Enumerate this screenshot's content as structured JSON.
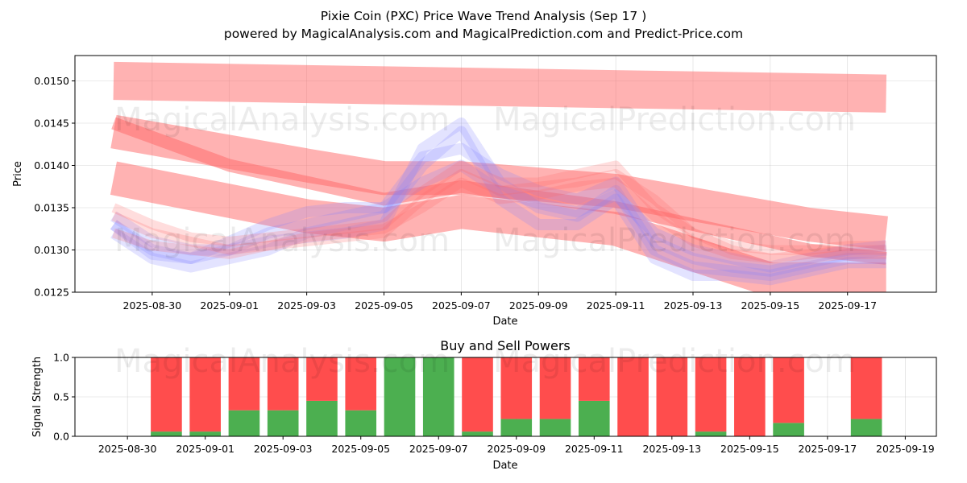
{
  "title_line1": "Pixie Coin (PXC) Price Wave Trend Analysis (Sep 17 )",
  "title_line2": "powered by MagicalAnalysis.com and MagicalPrediction.com and Predict-Price.com",
  "watermarks": [
    "MagicalAnalysis.com",
    "MagicalPrediction.com"
  ],
  "colors": {
    "buy": "#4caf50",
    "sell": "#ff4d4d",
    "history_band": "#8080ff",
    "forecast_band": "#ff6666"
  },
  "chart_data": [
    {
      "type": "line",
      "title": "",
      "xlabel": "Date",
      "ylabel": "Price",
      "ylim": [
        0.0125,
        0.0153
      ],
      "yticks": [
        0.0125,
        0.013,
        0.0135,
        0.014,
        0.0145,
        0.015
      ],
      "ytick_labels": [
        "0.0125",
        "0.0130",
        "0.0135",
        "0.0140",
        "0.0145",
        "0.0150"
      ],
      "xtick_labels": [
        "2025-08-30",
        "2025-09-01",
        "2025-09-03",
        "2025-09-05",
        "2025-09-07",
        "2025-09-09",
        "2025-09-11",
        "2025-09-13",
        "2025-09-15",
        "2025-09-17"
      ],
      "xtick_days": [
        -1,
        1,
        3,
        5,
        7,
        9,
        11,
        13,
        15,
        17
      ],
      "xlim_days": [
        -3.0,
        19.3
      ],
      "x_days": [
        -2,
        -1,
        0,
        1,
        2,
        3,
        4,
        5,
        6,
        7,
        8,
        9,
        10,
        11,
        12,
        13,
        14,
        15,
        16,
        17,
        18
      ],
      "series": [
        {
          "name": "wave-history-1",
          "kind": "history",
          "values": [
            0.0133,
            0.013,
            0.0129,
            0.013,
            0.0131,
            0.01315,
            0.0132,
            0.0133,
            0.0142,
            0.0145,
            0.0138,
            0.0135,
            0.0134,
            0.0137,
            0.013,
            0.0128,
            0.01275,
            0.0127,
            0.0128,
            0.0129,
            0.0129
          ]
        },
        {
          "name": "wave-history-2",
          "kind": "history",
          "values": [
            0.0132,
            0.0129,
            0.0128,
            0.0129,
            0.013,
            0.0132,
            0.0133,
            0.0134,
            0.014,
            0.0144,
            0.0136,
            0.0133,
            0.0133,
            0.0136,
            0.0129,
            0.0127,
            0.0127,
            0.01265,
            0.01275,
            0.01285,
            0.01285
          ]
        },
        {
          "name": "wave-history-3",
          "kind": "history",
          "values": [
            0.0134,
            0.0131,
            0.013,
            0.013,
            0.0132,
            0.0133,
            0.0134,
            0.0135,
            0.0141,
            0.0142,
            0.0139,
            0.0137,
            0.0136,
            0.0138,
            0.0131,
            0.0129,
            0.0128,
            0.01275,
            0.01285,
            0.01295,
            0.013
          ]
        },
        {
          "name": "wave-history-4",
          "kind": "history",
          "values": [
            0.0133,
            0.01295,
            0.0129,
            0.0131,
            0.0133,
            0.01345,
            0.0135,
            0.0135,
            0.0138,
            0.014,
            0.0137,
            0.01355,
            0.01345,
            0.01365,
            0.0132,
            0.013,
            0.0129,
            0.0128,
            0.0129,
            0.013,
            0.01305
          ]
        },
        {
          "name": "wave-forecast-1",
          "kind": "forecast",
          "values": [
            0.0134,
            0.0132,
            0.0131,
            0.013,
            0.01305,
            0.0131,
            0.01315,
            0.0132,
            0.0136,
            0.0139,
            0.0137,
            0.01375,
            0.0138,
            0.0139,
            0.0136,
            0.0132,
            0.013,
            0.0129,
            0.01295,
            0.013,
            0.013
          ]
        },
        {
          "name": "wave-forecast-2",
          "kind": "forecast",
          "values": [
            0.0132,
            0.01305,
            0.013,
            0.01295,
            0.01305,
            0.01315,
            0.0132,
            0.01325,
            0.0135,
            0.0138,
            0.0136,
            0.01365,
            0.01375,
            0.0138,
            0.0134,
            0.0131,
            0.01295,
            0.0129,
            0.0129,
            0.01295,
            0.01295
          ]
        },
        {
          "name": "wave-forecast-3",
          "kind": "forecast",
          "values": [
            0.0135,
            0.0133,
            0.01315,
            0.0131,
            0.01315,
            0.0132,
            0.01325,
            0.0133,
            0.0137,
            0.014,
            0.0138,
            0.0138,
            0.0139,
            0.014,
            0.0135,
            0.0132,
            0.01305,
            0.013,
            0.013,
            0.01305,
            0.01305
          ]
        }
      ],
      "trend_bands": [
        {
          "name": "trend-band-top",
          "x_days": [
            -2,
            18
          ],
          "start": 0.015,
          "end": 0.01485,
          "width": 0.00045
        },
        {
          "name": "trend-band-upper",
          "x_days": [
            -2,
            3,
            5,
            7,
            11,
            16,
            18
          ],
          "values": [
            0.0144,
            0.014,
            0.01385,
            0.01385,
            0.0137,
            0.0133,
            0.0132
          ],
          "width": 0.0004
        },
        {
          "name": "trend-band-main",
          "x_days": [
            -2,
            1,
            3,
            5,
            7,
            11,
            16,
            18
          ],
          "values": [
            0.0145,
            0.014,
            0.0138,
            0.0136,
            0.01375,
            0.0135,
            0.013,
            0.0129
          ],
          "width": 0.00015
        },
        {
          "name": "trend-band-lower",
          "x_days": [
            -2,
            3,
            5,
            7,
            11,
            15,
            18
          ],
          "values": [
            0.01385,
            0.0134,
            0.0133,
            0.01345,
            0.01325,
            0.01265,
            0.01265
          ],
          "width": 0.0004
        }
      ]
    },
    {
      "type": "bar",
      "title": "Buy and Sell Powers",
      "xlabel": "Date",
      "ylabel": "Signal Strength",
      "ylim": [
        0.0,
        1.0
      ],
      "yticks": [
        0.0,
        0.5,
        1.0
      ],
      "ytick_labels": [
        "0.0",
        "0.5",
        "1.0"
      ],
      "xtick_labels": [
        "2025-08-30",
        "2025-09-01",
        "2025-09-03",
        "2025-09-05",
        "2025-09-07",
        "2025-09-09",
        "2025-09-11",
        "2025-09-13",
        "2025-09-15",
        "2025-09-17",
        "2025-09-19"
      ],
      "xtick_days": [
        -1,
        1,
        3,
        5,
        7,
        9,
        11,
        13,
        15,
        17,
        19
      ],
      "xlim_days": [
        -2.35,
        19.8
      ],
      "categories": [
        "2025-08-31",
        "2025-09-01",
        "2025-09-02",
        "2025-09-03",
        "2025-09-04",
        "2025-09-05",
        "2025-09-06",
        "2025-09-07",
        "2025-09-08",
        "2025-09-09",
        "2025-09-10",
        "2025-09-11",
        "2025-09-12",
        "2025-09-13",
        "2025-09-14",
        "2025-09-15",
        "2025-09-16",
        "2025-09-18"
      ],
      "x_days": [
        0,
        1,
        2,
        3,
        4,
        5,
        6,
        7,
        8,
        9,
        10,
        11,
        12,
        13,
        14,
        15,
        16,
        18
      ],
      "series": [
        {
          "name": "Buy",
          "values": [
            0.06,
            0.06,
            0.33,
            0.33,
            0.45,
            0.33,
            1.0,
            1.0,
            0.06,
            0.22,
            0.22,
            0.45,
            0.0,
            0.0,
            0.06,
            0.0,
            0.17,
            0.22
          ]
        },
        {
          "name": "Sell",
          "values": [
            0.94,
            0.94,
            0.67,
            0.67,
            0.55,
            0.67,
            0.0,
            0.0,
            0.94,
            0.78,
            0.78,
            0.55,
            1.0,
            1.0,
            0.94,
            1.0,
            0.83,
            0.78
          ]
        }
      ]
    }
  ]
}
